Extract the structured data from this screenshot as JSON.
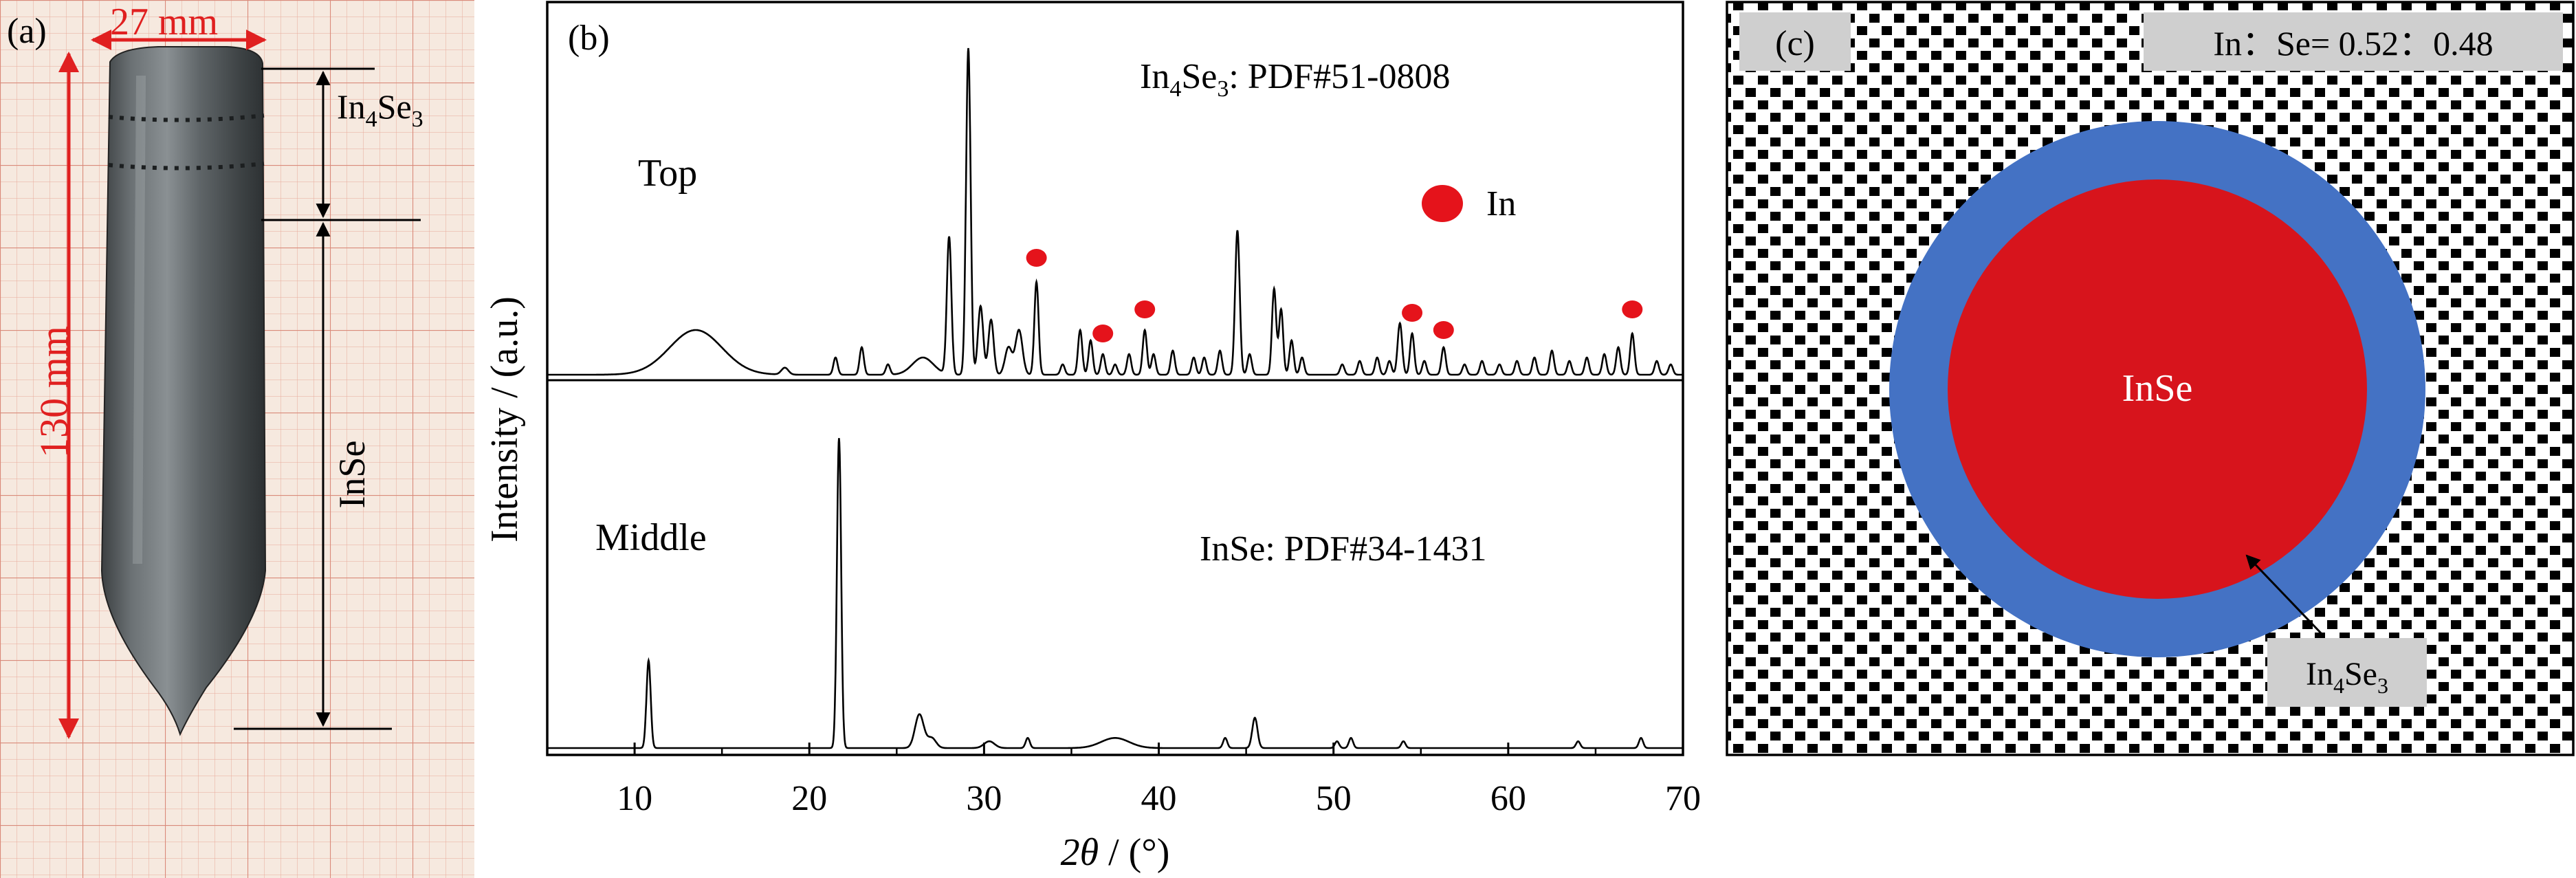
{
  "panel_a": {
    "label": "(a)",
    "width_dim": "27 mm",
    "height_dim": "130 mm",
    "zone_top": {
      "base": "In",
      "sub1": "4",
      "mid": "Se",
      "sub2": "3"
    },
    "zone_bottom": "InSe"
  },
  "chart_data": {
    "type": "line",
    "panel_label": "(b)",
    "xlabel": {
      "theta": "2θ",
      "unit": " / (°)"
    },
    "ylabel": "Intensity / (a.u.)",
    "xlim": [
      5,
      70
    ],
    "xticks": [
      10,
      20,
      30,
      40,
      50,
      60,
      70
    ],
    "x_tick_labels": [
      "10",
      "20",
      "30",
      "40",
      "50",
      "60",
      "70"
    ],
    "series": [
      {
        "name": "Top",
        "ref": {
          "base": "In",
          "sub1": "4",
          "mid": "Se",
          "sub2": "3",
          "rest": ": PDF#51-0808"
        },
        "peaks": [
          [
            13.5,
            0.13,
            1.5
          ],
          [
            18.6,
            0.02,
            0.2
          ],
          [
            21.5,
            0.05,
            0.12
          ],
          [
            23.0,
            0.08,
            0.12
          ],
          [
            24.5,
            0.03,
            0.12
          ],
          [
            26.5,
            0.05,
            0.6
          ],
          [
            28.0,
            0.4,
            0.13
          ],
          [
            29.1,
            0.95,
            0.13
          ],
          [
            29.8,
            0.2,
            0.15
          ],
          [
            30.4,
            0.16,
            0.15
          ],
          [
            31.4,
            0.08,
            0.2
          ],
          [
            32.0,
            0.13,
            0.2
          ],
          [
            33.0,
            0.27,
            0.12
          ],
          [
            34.5,
            0.03,
            0.12
          ],
          [
            35.5,
            0.13,
            0.12
          ],
          [
            36.1,
            0.1,
            0.12
          ],
          [
            36.8,
            0.06,
            0.12
          ],
          [
            37.5,
            0.03,
            0.12
          ],
          [
            38.3,
            0.06,
            0.12
          ],
          [
            39.2,
            0.13,
            0.12
          ],
          [
            39.7,
            0.06,
            0.12
          ],
          [
            40.8,
            0.07,
            0.12
          ],
          [
            42.0,
            0.05,
            0.12
          ],
          [
            42.6,
            0.05,
            0.12
          ],
          [
            43.5,
            0.07,
            0.12
          ],
          [
            44.5,
            0.42,
            0.13
          ],
          [
            45.2,
            0.06,
            0.12
          ],
          [
            46.6,
            0.25,
            0.12
          ],
          [
            47.0,
            0.19,
            0.12
          ],
          [
            47.6,
            0.1,
            0.12
          ],
          [
            48.2,
            0.05,
            0.12
          ],
          [
            50.5,
            0.03,
            0.12
          ],
          [
            51.5,
            0.04,
            0.12
          ],
          [
            52.5,
            0.05,
            0.12
          ],
          [
            53.2,
            0.04,
            0.12
          ],
          [
            53.8,
            0.15,
            0.13
          ],
          [
            54.5,
            0.12,
            0.12
          ],
          [
            55.2,
            0.04,
            0.12
          ],
          [
            56.3,
            0.08,
            0.12
          ],
          [
            57.5,
            0.03,
            0.12
          ],
          [
            58.5,
            0.04,
            0.12
          ],
          [
            59.5,
            0.03,
            0.12
          ],
          [
            60.5,
            0.04,
            0.12
          ],
          [
            61.5,
            0.05,
            0.12
          ],
          [
            62.5,
            0.07,
            0.12
          ],
          [
            63.5,
            0.04,
            0.12
          ],
          [
            64.5,
            0.05,
            0.12
          ],
          [
            65.5,
            0.06,
            0.12
          ],
          [
            66.3,
            0.08,
            0.12
          ],
          [
            67.1,
            0.12,
            0.12
          ],
          [
            68.5,
            0.04,
            0.12
          ],
          [
            69.3,
            0.03,
            0.12
          ]
        ],
        "marker_positions": [
          [
            33.0,
            0.34
          ],
          [
            36.8,
            0.12
          ],
          [
            39.2,
            0.19
          ],
          [
            54.5,
            0.18
          ],
          [
            56.3,
            0.13
          ],
          [
            67.1,
            0.19
          ]
        ],
        "marker_label": "In",
        "marker_color": "#e5131b"
      },
      {
        "name": "Middle",
        "ref": {
          "text": "InSe: PDF#34-1431"
        },
        "peaks": [
          [
            10.8,
            0.26,
            0.12
          ],
          [
            21.7,
            0.92,
            0.12
          ],
          [
            26.3,
            0.1,
            0.25
          ],
          [
            27.0,
            0.03,
            0.25
          ],
          [
            30.3,
            0.02,
            0.3
          ],
          [
            32.5,
            0.03,
            0.12
          ],
          [
            37.5,
            0.03,
            0.8
          ],
          [
            43.8,
            0.03,
            0.12
          ],
          [
            45.5,
            0.09,
            0.15
          ],
          [
            50.2,
            0.02,
            0.12
          ],
          [
            51.0,
            0.03,
            0.12
          ],
          [
            54.0,
            0.02,
            0.12
          ],
          [
            64.0,
            0.02,
            0.12
          ],
          [
            67.6,
            0.03,
            0.12
          ]
        ]
      }
    ]
  },
  "panel_c": {
    "label": "(c)",
    "ratio_text": "In：Se= 0.52：0.48",
    "inner_label": "InSe",
    "ring_label": {
      "base": "In",
      "sub1": "4",
      "mid": "Se",
      "sub2": "3"
    },
    "inner_color": "#d7141c",
    "ring_color": "#4472c4"
  }
}
